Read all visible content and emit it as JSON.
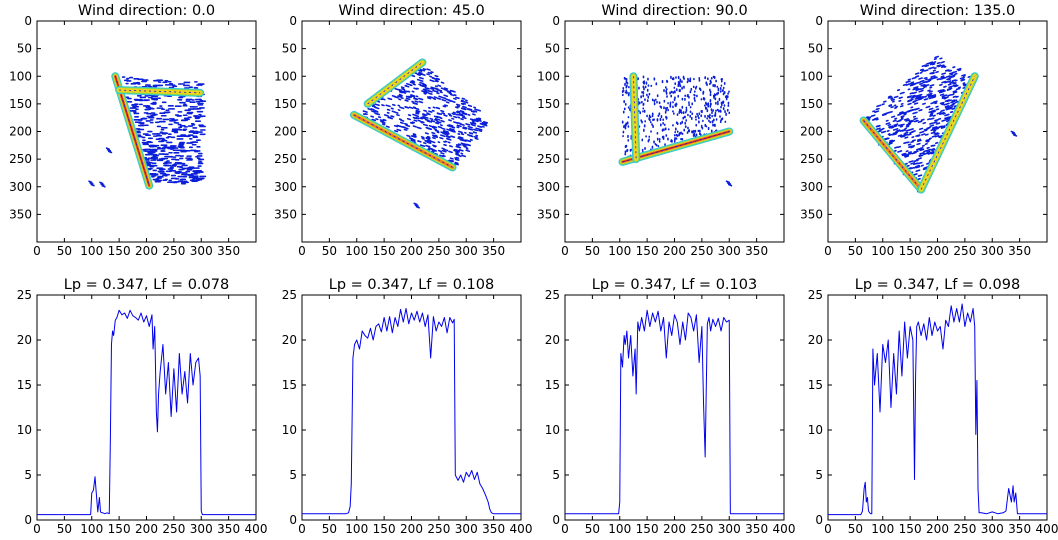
{
  "colors": {
    "line": "#0000ee",
    "scatter_blue": "#0a1fd8",
    "wall_cyan": "#33c6d6",
    "wall_green": "#7ed957",
    "wall_yellow": "#f2d21b",
    "wall_orange": "#f07a22",
    "wall_red": "#cc1f1f"
  },
  "chart_data": [
    {
      "type": "heatmap",
      "title": "Wind direction: 0.0",
      "xlabel": "",
      "ylabel": "",
      "xlim": [
        0,
        400
      ],
      "ylim": [
        400,
        0
      ],
      "xticks": [
        "0",
        "50",
        "100",
        "150",
        "200",
        "250",
        "300",
        "350"
      ],
      "yticks": [
        "0",
        "50",
        "100",
        "150",
        "200",
        "250",
        "300",
        "350"
      ],
      "grid": false,
      "domain": {
        "corners": [
          [
            148,
            100
          ],
          [
            300,
            110
          ],
          [
            300,
            295
          ],
          [
            205,
            295
          ]
        ],
        "rotation_deg": 0
      },
      "walls": [
        {
          "from": [
            143,
            100
          ],
          "to": [
            205,
            298
          ],
          "intensity": 1.0
        },
        {
          "from": [
            150,
            125
          ],
          "to": [
            298,
            130
          ],
          "intensity": 0.6
        }
      ],
      "outliers": [
        [
          95,
          290
        ],
        [
          115,
          292
        ],
        [
          127,
          230
        ]
      ]
    },
    {
      "type": "heatmap",
      "title": "Wind direction: 45.0",
      "xlabel": "",
      "ylabel": "",
      "xlim": [
        0,
        400
      ],
      "ylim": [
        400,
        0
      ],
      "xticks": [
        "0",
        "50",
        "100",
        "150",
        "200",
        "250",
        "300",
        "350"
      ],
      "yticks": [
        "0",
        "50",
        "100",
        "150",
        "200",
        "250",
        "300",
        "350"
      ],
      "grid": false,
      "domain": {
        "corners": [
          [
            95,
            170
          ],
          [
            215,
            75
          ],
          [
            345,
            180
          ],
          [
            275,
            265
          ]
        ],
        "rotation_deg": 45
      },
      "walls": [
        {
          "from": [
            95,
            170
          ],
          "to": [
            275,
            265
          ],
          "intensity": 0.8
        },
        {
          "from": [
            120,
            150
          ],
          "to": [
            220,
            75
          ],
          "intensity": 0.5
        }
      ],
      "outliers": [
        [
          205,
          330
        ]
      ]
    },
    {
      "type": "heatmap",
      "title": "Wind direction: 90.0",
      "xlabel": "",
      "ylabel": "",
      "xlim": [
        0,
        400
      ],
      "ylim": [
        400,
        0
      ],
      "xticks": [
        "0",
        "50",
        "100",
        "150",
        "200",
        "250",
        "300",
        "350"
      ],
      "yticks": [
        "0",
        "50",
        "100",
        "150",
        "200",
        "250",
        "300",
        "350"
      ],
      "grid": false,
      "domain": {
        "corners": [
          [
            105,
            100
          ],
          [
            300,
            100
          ],
          [
            300,
            200
          ],
          [
            105,
            255
          ]
        ],
        "rotation_deg": 90
      },
      "walls": [
        {
          "from": [
            105,
            255
          ],
          "to": [
            300,
            200
          ],
          "intensity": 1.0
        },
        {
          "from": [
            125,
            100
          ],
          "to": [
            130,
            250
          ],
          "intensity": 0.5
        }
      ],
      "outliers": [
        [
          295,
          290
        ]
      ]
    },
    {
      "type": "heatmap",
      "title": "Wind direction: 135.0",
      "xlabel": "",
      "ylabel": "",
      "xlim": [
        0,
        400
      ],
      "ylim": [
        400,
        0
      ],
      "xticks": [
        "0",
        "50",
        "100",
        "150",
        "200",
        "250",
        "300",
        "350"
      ],
      "yticks": [
        "0",
        "50",
        "100",
        "150",
        "200",
        "250",
        "300",
        "350"
      ],
      "grid": false,
      "domain": {
        "corners": [
          [
            65,
            180
          ],
          [
            200,
            60
          ],
          [
            265,
            100
          ],
          [
            170,
            310
          ]
        ],
        "rotation_deg": 135
      },
      "walls": [
        {
          "from": [
            65,
            180
          ],
          "to": [
            170,
            305
          ],
          "intensity": 0.8
        },
        {
          "from": [
            170,
            305
          ],
          "to": [
            268,
            100
          ],
          "intensity": 0.6
        }
      ],
      "outliers": [
        [
          335,
          200
        ]
      ]
    },
    {
      "type": "line",
      "title": "Lp = 0.347, Lf = 0.078",
      "xlabel": "",
      "ylabel": "",
      "xlim": [
        0,
        400
      ],
      "ylim": [
        0,
        25
      ],
      "xticks": [
        "0",
        "50",
        "100",
        "150",
        "200",
        "250",
        "300",
        "350",
        "400"
      ],
      "yticks": [
        "0",
        "5",
        "10",
        "15",
        "20",
        "25"
      ],
      "grid": false,
      "series": [
        {
          "x": [
            0,
            98,
            100,
            103,
            106,
            108,
            111,
            114,
            116,
            118,
            120,
            124,
            128,
            132,
            134,
            136,
            138,
            140,
            143,
            146,
            150,
            155,
            160,
            165,
            170,
            175,
            180,
            185,
            190,
            195,
            200,
            205,
            210,
            212,
            215,
            218,
            220,
            222,
            225,
            230,
            235,
            240,
            245,
            250,
            255,
            260,
            265,
            270,
            275,
            280,
            285,
            290,
            295,
            298,
            300,
            302,
            400
          ],
          "y": [
            0.6,
            0.6,
            3.0,
            3.3,
            4.8,
            3.2,
            0.9,
            2.5,
            0.9,
            0.8,
            0.8,
            0.7,
            0.8,
            0.7,
            9.0,
            19.5,
            21.0,
            20.5,
            22.2,
            22.5,
            23.3,
            22.8,
            23.0,
            22.4,
            23.3,
            22.7,
            22.5,
            22.2,
            23.0,
            22.0,
            22.7,
            21.5,
            22.8,
            19.0,
            21.5,
            12.0,
            9.8,
            14.0,
            16.5,
            19.5,
            14.0,
            17.5,
            11.5,
            16.8,
            12.0,
            18.5,
            14.0,
            16.5,
            13.0,
            18.5,
            15.0,
            17.5,
            18.0,
            16.0,
            1.0,
            0.6,
            0.6
          ]
        }
      ]
    },
    {
      "type": "line",
      "title": "Lp = 0.347, Lf = 0.108",
      "xlabel": "",
      "ylabel": "",
      "xlim": [
        0,
        400
      ],
      "ylim": [
        0,
        25
      ],
      "xticks": [
        "0",
        "50",
        "100",
        "150",
        "200",
        "250",
        "300",
        "350",
        "400"
      ],
      "yticks": [
        "0",
        "5",
        "10",
        "15",
        "20",
        "25"
      ],
      "grid": false,
      "series": [
        {
          "x": [
            0,
            80,
            85,
            88,
            90,
            93,
            96,
            100,
            105,
            110,
            115,
            120,
            125,
            130,
            135,
            140,
            145,
            150,
            155,
            160,
            165,
            170,
            175,
            180,
            185,
            190,
            195,
            200,
            205,
            210,
            215,
            220,
            225,
            230,
            235,
            240,
            245,
            250,
            255,
            260,
            265,
            270,
            275,
            278,
            280,
            285,
            290,
            295,
            300,
            305,
            310,
            315,
            320,
            325,
            330,
            335,
            340,
            343,
            346,
            350,
            400
          ],
          "y": [
            0.7,
            0.7,
            0.8,
            1.5,
            4.0,
            18.0,
            19.5,
            20.0,
            19.0,
            21.0,
            20.5,
            20.2,
            21.3,
            20.0,
            21.5,
            21.8,
            20.9,
            22.5,
            21.0,
            22.6,
            20.8,
            22.5,
            21.5,
            23.4,
            22.0,
            23.5,
            21.8,
            23.0,
            22.2,
            23.2,
            22.0,
            23.0,
            21.5,
            22.8,
            18.0,
            22.6,
            21.0,
            22.0,
            21.5,
            22.5,
            20.8,
            22.5,
            21.9,
            22.3,
            5.0,
            4.4,
            5.0,
            4.2,
            5.3,
            4.8,
            5.5,
            4.5,
            5.3,
            4.0,
            3.5,
            2.8,
            2.0,
            1.2,
            0.8,
            0.7,
            0.7
          ]
        }
      ]
    },
    {
      "type": "line",
      "title": "Lp = 0.347, Lf = 0.103",
      "xlabel": "",
      "ylabel": "",
      "xlim": [
        0,
        400
      ],
      "ylim": [
        0,
        25
      ],
      "xticks": [
        "0",
        "50",
        "100",
        "150",
        "200",
        "250",
        "300",
        "350",
        "400"
      ],
      "yticks": [
        "0",
        "5",
        "10",
        "15",
        "20",
        "25"
      ],
      "grid": false,
      "series": [
        {
          "x": [
            0,
            98,
            100,
            102,
            105,
            108,
            110,
            113,
            116,
            120,
            124,
            128,
            130,
            133,
            136,
            140,
            145,
            150,
            155,
            160,
            165,
            170,
            175,
            180,
            185,
            190,
            195,
            200,
            205,
            210,
            215,
            220,
            225,
            230,
            235,
            240,
            245,
            250,
            253,
            256,
            258,
            260,
            263,
            266,
            270,
            275,
            280,
            285,
            290,
            295,
            300,
            302,
            400
          ],
          "y": [
            0.7,
            0.7,
            2.0,
            18.5,
            17.0,
            20.5,
            19.5,
            21.0,
            18.0,
            20.5,
            16.0,
            19.0,
            14.0,
            22.0,
            21.0,
            22.5,
            21.0,
            23.3,
            21.5,
            23.0,
            22.0,
            23.2,
            21.0,
            22.5,
            18.0,
            22.0,
            20.5,
            22.8,
            22.0,
            19.5,
            22.0,
            20.0,
            23.0,
            22.5,
            21.0,
            22.8,
            17.5,
            21.5,
            13.0,
            7.0,
            14.5,
            21.8,
            22.5,
            21.0,
            22.3,
            21.5,
            22.4,
            21.0,
            22.5,
            22.0,
            22.2,
            0.7,
            0.7
          ]
        }
      ]
    },
    {
      "type": "line",
      "title": "Lp = 0.347, Lf = 0.098",
      "xlabel": "",
      "ylabel": "",
      "xlim": [
        0,
        400
      ],
      "ylim": [
        0,
        25
      ],
      "xticks": [
        "0",
        "50",
        "100",
        "150",
        "200",
        "250",
        "300",
        "350",
        "400"
      ],
      "yticks": [
        "0",
        "5",
        "10",
        "15",
        "20",
        "25"
      ],
      "grid": false,
      "series": [
        {
          "x": [
            0,
            60,
            63,
            66,
            68,
            70,
            72,
            74,
            76,
            78,
            80,
            82,
            85,
            90,
            95,
            100,
            105,
            110,
            115,
            120,
            125,
            130,
            135,
            140,
            145,
            150,
            155,
            158,
            160,
            162,
            165,
            170,
            175,
            180,
            185,
            190,
            195,
            200,
            205,
            210,
            215,
            220,
            225,
            230,
            235,
            240,
            245,
            250,
            255,
            260,
            265,
            268,
            270,
            272,
            274,
            276,
            280,
            290,
            300,
            310,
            320,
            325,
            330,
            335,
            338,
            340,
            343,
            346,
            400
          ],
          "y": [
            0.6,
            0.6,
            1.0,
            3.5,
            4.2,
            2.0,
            2.5,
            1.0,
            0.8,
            0.7,
            0.7,
            19.0,
            15.0,
            18.5,
            12.0,
            19.5,
            17.5,
            20.0,
            12.5,
            18.5,
            14.0,
            21.0,
            16.0,
            22.0,
            18.0,
            21.5,
            20.0,
            4.5,
            16.0,
            21.5,
            22.0,
            20.5,
            21.8,
            20.0,
            22.5,
            20.5,
            22.0,
            21.0,
            21.5,
            19.0,
            22.2,
            21.5,
            23.8,
            22.0,
            23.5,
            22.0,
            24.0,
            21.5,
            23.0,
            22.0,
            23.5,
            21.5,
            9.5,
            15.5,
            3.5,
            0.8,
            0.8,
            0.7,
            0.9,
            0.7,
            0.8,
            1.0,
            3.5,
            2.0,
            3.8,
            2.0,
            3.0,
            0.7,
            0.7
          ]
        }
      ]
    }
  ]
}
